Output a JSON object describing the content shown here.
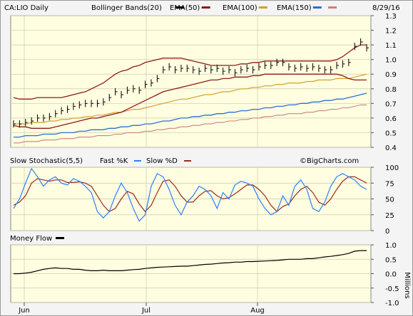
{
  "header": {
    "symbol": "CA:LIO Daily",
    "indicators": [
      {
        "label": "Bollinger Bands(20)",
        "color": "#000000"
      },
      {
        "label": "EMA(50)",
        "color": "#8b1a1a"
      },
      {
        "label": "EMA(100)",
        "color": "#d4a02a"
      },
      {
        "label": "EMA(150)",
        "color": "#2a6fd6"
      },
      {
        "label": "",
        "color": "#c98080"
      }
    ],
    "date": "8/29/16"
  },
  "stoch_header": {
    "title": "Slow Stochastic(5,5)",
    "fast_label": "Fast %K",
    "fast_color": "#2a7fff",
    "slow_label": "Slow %D",
    "slow_color": "#9b2a1a",
    "watermark": "©BigCharts.com"
  },
  "mf_header": {
    "title": "Money Flow",
    "color": "#000000",
    "units": "Millions"
  },
  "x_labels": [
    "Jun",
    "Jul",
    "Aug"
  ],
  "chart_data": [
    {
      "type": "line",
      "name": "price",
      "ylim": [
        0.4,
        1.3
      ],
      "yticks": [
        "1.3",
        "1.2",
        "1.1",
        "1.0",
        "0.9",
        "0.8",
        "0.7",
        "0.6",
        "0.5",
        "0.4"
      ],
      "ohlc_close": [
        0.56,
        0.56,
        0.57,
        0.58,
        0.6,
        0.6,
        0.61,
        0.63,
        0.65,
        0.66,
        0.68,
        0.69,
        0.7,
        0.7,
        0.7,
        0.71,
        0.74,
        0.78,
        0.76,
        0.79,
        0.8,
        0.79,
        0.83,
        0.84,
        0.87,
        0.93,
        0.95,
        0.93,
        0.94,
        0.94,
        0.93,
        0.92,
        0.94,
        0.93,
        0.94,
        0.92,
        0.93,
        0.91,
        0.93,
        0.94,
        0.93,
        0.95,
        0.96,
        0.96,
        0.98,
        0.98,
        0.95,
        0.94,
        0.95,
        0.94,
        0.95,
        0.94,
        0.93,
        0.93,
        0.96,
        0.97,
        0.98,
        1.09,
        1.12,
        1.08
      ],
      "bb_upper": [
        0.74,
        0.73,
        0.73,
        0.73,
        0.74,
        0.74,
        0.74,
        0.74,
        0.74,
        0.75,
        0.76,
        0.77,
        0.78,
        0.8,
        0.82,
        0.84,
        0.87,
        0.9,
        0.92,
        0.93,
        0.95,
        0.96,
        0.98,
        0.99,
        1.0,
        1.01,
        1.01,
        1.01,
        1.01,
        1.0,
        0.99,
        0.98,
        0.97,
        0.96,
        0.96,
        0.96,
        0.96,
        0.96,
        0.97,
        0.97,
        0.98,
        0.98,
        0.99,
        0.99,
        0.99,
        0.99,
        0.99,
        0.99,
        0.99,
        0.99,
        0.99,
        0.99,
        0.99,
        0.99,
        1.0,
        1.02,
        1.05,
        1.08,
        1.1,
        1.1
      ],
      "bb_lower": [
        0.55,
        0.54,
        0.54,
        0.53,
        0.53,
        0.53,
        0.53,
        0.54,
        0.55,
        0.56,
        0.57,
        0.58,
        0.59,
        0.6,
        0.6,
        0.61,
        0.62,
        0.63,
        0.64,
        0.66,
        0.68,
        0.7,
        0.72,
        0.74,
        0.76,
        0.78,
        0.79,
        0.8,
        0.81,
        0.82,
        0.83,
        0.84,
        0.85,
        0.86,
        0.86,
        0.87,
        0.87,
        0.88,
        0.88,
        0.88,
        0.89,
        0.89,
        0.9,
        0.9,
        0.9,
        0.9,
        0.9,
        0.9,
        0.9,
        0.9,
        0.9,
        0.9,
        0.9,
        0.9,
        0.9,
        0.89,
        0.87,
        0.86,
        0.86,
        0.86
      ],
      "ema50": [
        0.57,
        0.57,
        0.57,
        0.58,
        0.58,
        0.59,
        0.59,
        0.6,
        0.6,
        0.61,
        0.62,
        0.62,
        0.63,
        0.64,
        0.64,
        0.65,
        0.66,
        0.67,
        0.67,
        0.68,
        0.69,
        0.7,
        0.71,
        0.72,
        0.73,
        0.74,
        0.75,
        0.76,
        0.77,
        0.78,
        0.78,
        0.79,
        0.8,
        0.8,
        0.81,
        0.81,
        0.82,
        0.82,
        0.83,
        0.83,
        0.84,
        0.84,
        0.85,
        0.85,
        0.86,
        0.86,
        0.87,
        0.87,
        0.87,
        0.88,
        0.88,
        0.88,
        0.88,
        0.89,
        0.89,
        0.89,
        0.9,
        0.9,
        0.91,
        0.92
      ],
      "ema100": [
        0.56,
        0.56,
        0.56,
        0.57,
        0.57,
        0.57,
        0.58,
        0.58,
        0.59,
        0.59,
        0.6,
        0.6,
        0.61,
        0.61,
        0.62,
        0.62,
        0.63,
        0.64,
        0.64,
        0.65,
        0.66,
        0.66,
        0.67,
        0.68,
        0.69,
        0.7,
        0.71,
        0.72,
        0.73,
        0.73,
        0.74,
        0.75,
        0.76,
        0.76,
        0.77,
        0.78,
        0.78,
        0.79,
        0.8,
        0.8,
        0.81,
        0.81,
        0.82,
        0.82,
        0.83,
        0.83,
        0.84,
        0.84,
        0.84,
        0.85,
        0.85,
        0.86,
        0.86,
        0.86,
        0.87,
        0.87,
        0.87,
        0.88,
        0.89,
        0.9
      ],
      "ema150": [
        0.47,
        0.47,
        0.48,
        0.48,
        0.48,
        0.49,
        0.49,
        0.49,
        0.5,
        0.5,
        0.5,
        0.51,
        0.51,
        0.52,
        0.52,
        0.52,
        0.53,
        0.53,
        0.54,
        0.54,
        0.55,
        0.55,
        0.56,
        0.56,
        0.57,
        0.58,
        0.58,
        0.59,
        0.6,
        0.6,
        0.61,
        0.61,
        0.62,
        0.62,
        0.63,
        0.63,
        0.64,
        0.64,
        0.65,
        0.65,
        0.66,
        0.66,
        0.67,
        0.67,
        0.68,
        0.68,
        0.69,
        0.69,
        0.7,
        0.7,
        0.71,
        0.71,
        0.72,
        0.72,
        0.73,
        0.73,
        0.74,
        0.75,
        0.76,
        0.77
      ],
      "ema200": [
        0.43,
        0.43,
        0.44,
        0.44,
        0.44,
        0.45,
        0.45,
        0.45,
        0.46,
        0.46,
        0.46,
        0.47,
        0.47,
        0.47,
        0.48,
        0.48,
        0.48,
        0.49,
        0.49,
        0.5,
        0.5,
        0.5,
        0.51,
        0.51,
        0.52,
        0.52,
        0.53,
        0.53,
        0.54,
        0.54,
        0.55,
        0.55,
        0.56,
        0.56,
        0.57,
        0.57,
        0.58,
        0.58,
        0.59,
        0.59,
        0.6,
        0.6,
        0.61,
        0.61,
        0.62,
        0.62,
        0.63,
        0.63,
        0.63,
        0.64,
        0.64,
        0.65,
        0.65,
        0.66,
        0.66,
        0.67,
        0.67,
        0.68,
        0.69,
        0.69
      ]
    },
    {
      "type": "line",
      "name": "stochastic",
      "ylim": [
        0,
        100
      ],
      "yticks": [
        "100",
        "75",
        "50",
        "25",
        "0"
      ],
      "fast_k": [
        35,
        50,
        75,
        98,
        85,
        70,
        80,
        85,
        75,
        72,
        82,
        78,
        70,
        60,
        30,
        20,
        30,
        55,
        75,
        60,
        35,
        15,
        25,
        70,
        90,
        85,
        65,
        40,
        25,
        45,
        55,
        70,
        65,
        55,
        35,
        60,
        50,
        72,
        78,
        75,
        70,
        50,
        35,
        25,
        30,
        55,
        40,
        70,
        80,
        65,
        35,
        30,
        45,
        70,
        85,
        90,
        85,
        80,
        70,
        65
      ],
      "slow_d": [
        40,
        45,
        55,
        75,
        82,
        80,
        78,
        80,
        80,
        76,
        76,
        77,
        75,
        70,
        55,
        40,
        30,
        35,
        50,
        62,
        58,
        42,
        30,
        40,
        60,
        78,
        80,
        70,
        55,
        45,
        45,
        55,
        62,
        63,
        55,
        50,
        52,
        58,
        65,
        72,
        72,
        65,
        55,
        40,
        30,
        38,
        42,
        55,
        65,
        70,
        60,
        45,
        40,
        50,
        65,
        78,
        85,
        85,
        80,
        75
      ]
    },
    {
      "type": "line",
      "name": "money_flow",
      "ylim": [
        -1.0,
        1.0
      ],
      "yticks": [
        "1.0",
        "0.5",
        "0.0",
        "-0.5",
        "-1.0"
      ],
      "values": [
        0.0,
        0.0,
        0.02,
        0.05,
        0.1,
        0.15,
        0.18,
        0.2,
        0.18,
        0.18,
        0.15,
        0.15,
        0.12,
        0.1,
        0.1,
        0.12,
        0.1,
        0.1,
        0.1,
        0.12,
        0.14,
        0.15,
        0.18,
        0.2,
        0.22,
        0.23,
        0.24,
        0.25,
        0.26,
        0.26,
        0.28,
        0.3,
        0.32,
        0.33,
        0.35,
        0.37,
        0.38,
        0.4,
        0.4,
        0.42,
        0.42,
        0.43,
        0.44,
        0.45,
        0.46,
        0.48,
        0.5,
        0.5,
        0.5,
        0.52,
        0.52,
        0.55,
        0.58,
        0.6,
        0.63,
        0.66,
        0.7,
        0.78,
        0.8,
        0.8
      ]
    }
  ]
}
